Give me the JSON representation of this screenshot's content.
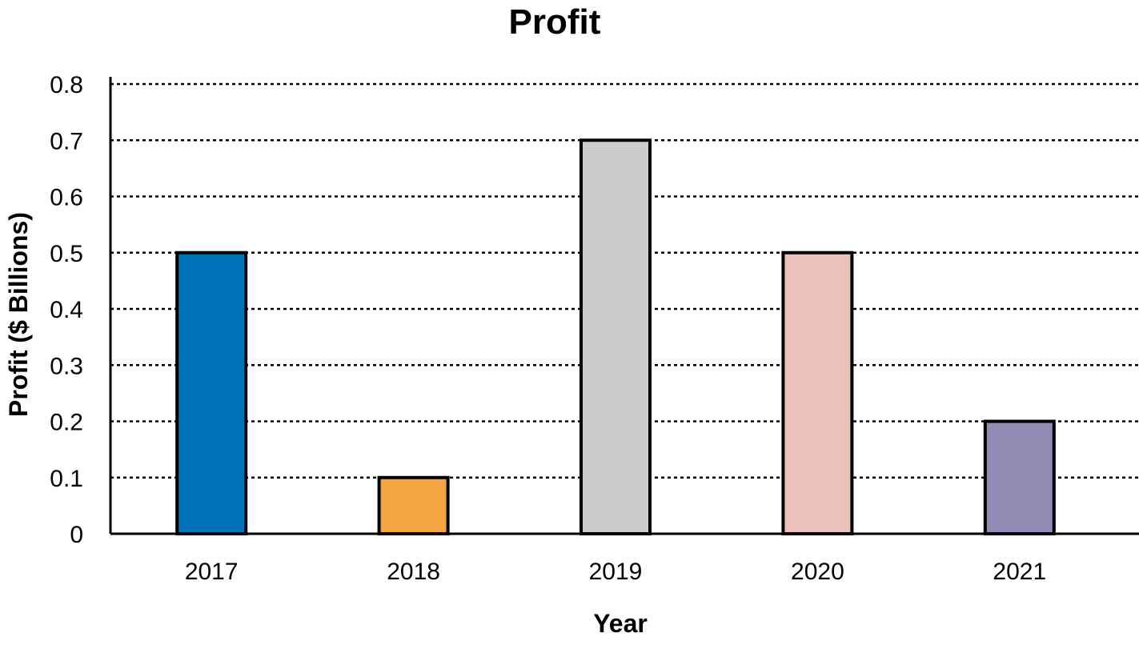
{
  "chart_data": {
    "type": "bar",
    "title": "Profit",
    "xlabel": "Year",
    "ylabel": "Profit ($ Billions)",
    "categories": [
      "2017",
      "2018",
      "2019",
      "2020",
      "2021"
    ],
    "values": [
      0.5,
      0.1,
      0.7,
      0.5,
      0.2
    ],
    "colors": [
      "#0070b8",
      "#f4a442",
      "#cccccc",
      "#ebc1bb",
      "#928bb3"
    ],
    "ylim": [
      0,
      0.8
    ],
    "yticks": [
      "0",
      "0.1",
      "0.2",
      "0.3",
      "0.4",
      "0.5",
      "0.6",
      "0.7",
      "0.8"
    ],
    "grid": true,
    "legend": "none"
  }
}
